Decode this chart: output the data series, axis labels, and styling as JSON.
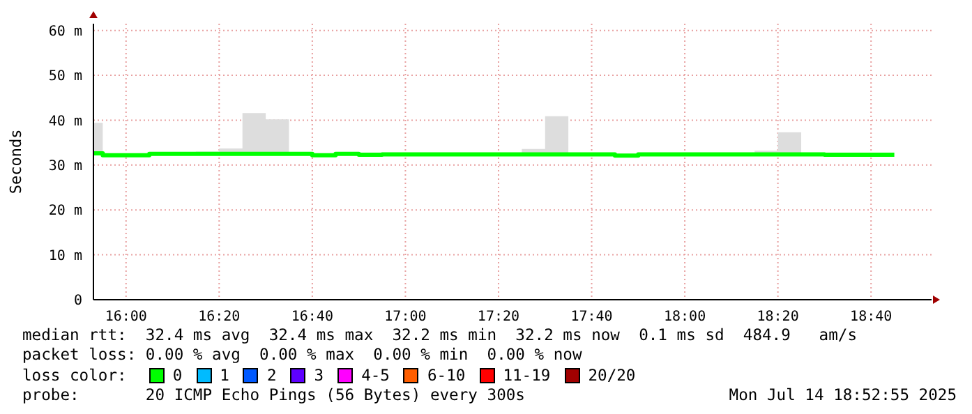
{
  "chart_data": {
    "type": "step",
    "ylabel": "Seconds",
    "grid": true,
    "marker": "none",
    "xlim": [
      15.8833,
      18.8833
    ],
    "xticks": [
      {
        "value": 16,
        "label": "16:00"
      },
      {
        "value": 16.3333,
        "label": "16:20"
      },
      {
        "value": 16.6667,
        "label": "16:40"
      },
      {
        "value": 17,
        "label": "17:00"
      },
      {
        "value": 17.3333,
        "label": "17:20"
      },
      {
        "value": 17.6667,
        "label": "17:40"
      },
      {
        "value": 18,
        "label": "18:00"
      },
      {
        "value": 18.3333,
        "label": "18:20"
      },
      {
        "value": 18.6667,
        "label": "18:40"
      }
    ],
    "ylim": [
      0,
      61.5
    ],
    "yticks": [
      0,
      {
        "value": 10,
        "label": "10 m"
      },
      {
        "value": 20,
        "label": "20 m"
      },
      {
        "value": 30,
        "label": "30 m"
      },
      {
        "value": 40,
        "label": "40 m"
      },
      {
        "value": 50,
        "label": "50 m"
      },
      {
        "value": 60,
        "label": "60 m"
      }
    ],
    "x": [
      15.8833,
      15.9167,
      16,
      16.0833,
      16.1667,
      16.25,
      16.3333,
      16.4167,
      16.5,
      16.5833,
      16.6667,
      16.75,
      16.8333,
      16.9167,
      17,
      17.0833,
      17.1667,
      17.25,
      17.3333,
      17.4167,
      17.5,
      17.5833,
      17.6667,
      17.75,
      17.8333,
      17.9167,
      18,
      18.0833,
      18.1667,
      18.25,
      18.3333,
      18.4167,
      18.5,
      18.5833,
      18.6667,
      18.75
    ],
    "series": [
      {
        "color": "#00ff00",
        "values": [
          32.6,
          32.2,
          32.2,
          32.5,
          32.5,
          32.5,
          32.5,
          32.5,
          32.5,
          32.5,
          32.2,
          32.5,
          32.3,
          32.4,
          32.4,
          32.4,
          32.4,
          32.4,
          32.4,
          32.4,
          32.4,
          32.4,
          32.4,
          32.1,
          32.4,
          32.4,
          32.4,
          32.4,
          32.4,
          32.4,
          32.4,
          32.4,
          32.3,
          32.3,
          32.3,
          32.3
        ],
        "lower": [
          32.6,
          32.2,
          32.2,
          32.5,
          32.5,
          32.5,
          32.5,
          32.5,
          32.5,
          32.5,
          32.2,
          32.5,
          32.3,
          32.4,
          32.4,
          32.4,
          32.4,
          32.4,
          32.4,
          32.4,
          32.4,
          32.4,
          32.4,
          32.1,
          32.4,
          32.4,
          32.4,
          32.4,
          32.4,
          32.4,
          32.4,
          32.4,
          32.3,
          32.3,
          32.3,
          32.3
        ],
        "upper": [
          39.4,
          32.2,
          32.2,
          32.5,
          32.5,
          33,
          33.7,
          41.6,
          40.2,
          32.5,
          32.2,
          32.5,
          32.6,
          32.4,
          32.4,
          32.4,
          32.4,
          32.4,
          32.4,
          33.6,
          40.9,
          32.4,
          32.4,
          32.1,
          32.4,
          32.4,
          32.4,
          32.4,
          32.4,
          33.2,
          37.3,
          32.4,
          32.3,
          32.3,
          32.3,
          32.3
        ]
      }
    ],
    "annotations": [
      "median rtt:  32.4 ms avg  32.4 ms max  32.2 ms min  32.2 ms now  0.1 ms sd  484.9   am/s",
      "packet loss: 0.00 % avg  0.00 % max  0.00 % min  0.00 % now",
      "loss color:",
      "0",
      "1",
      "2",
      "3",
      "4-5",
      "6-10",
      "11-19",
      "20/20",
      "probe:       20 ICMP Echo Pings (56 Bytes) every 300s",
      "Mon Jul 14 18:52:55 2025"
    ]
  }
}
